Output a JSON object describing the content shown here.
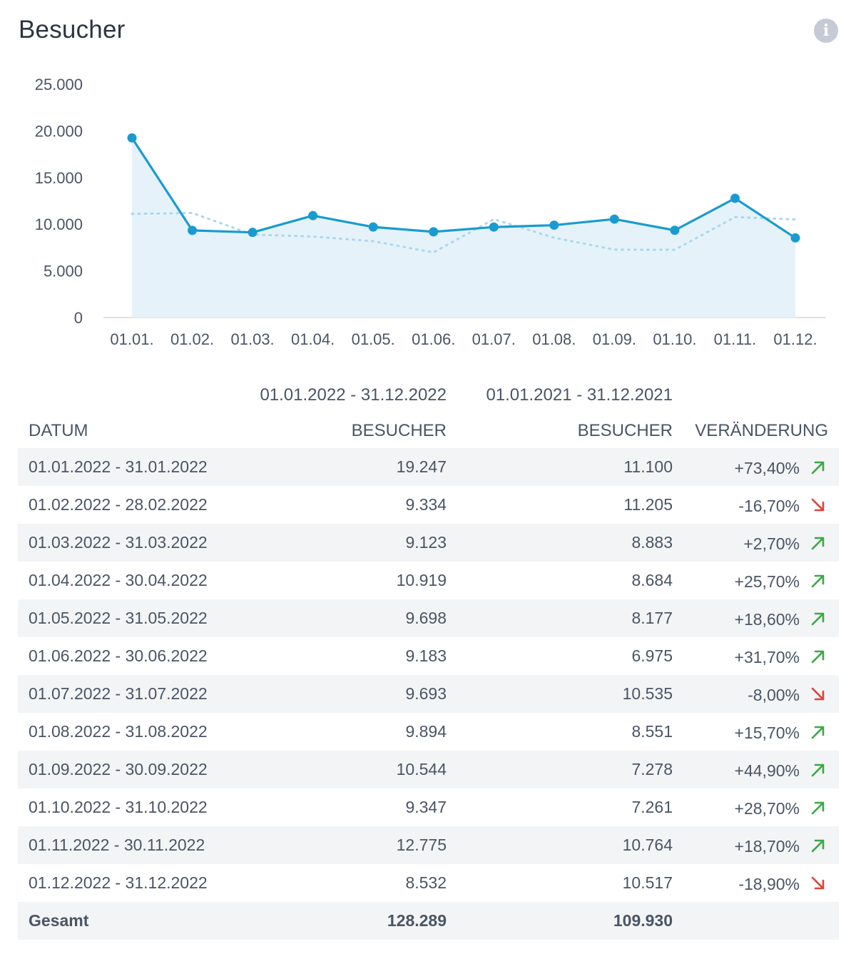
{
  "header": {
    "title": "Besucher",
    "info_icon": "info-icon"
  },
  "chart_data": {
    "type": "line",
    "title": "Besucher",
    "categories": [
      "01.01.",
      "01.02.",
      "01.03.",
      "01.04.",
      "01.05.",
      "01.06.",
      "01.07.",
      "01.08.",
      "01.09.",
      "01.10.",
      "01.11.",
      "01.12."
    ],
    "series": [
      {
        "name": "01.01.2022 - 31.12.2022",
        "style": "solid-with-markers-and-area",
        "color": "#1a9bd0",
        "values": [
          19247,
          9334,
          9123,
          10919,
          9698,
          9183,
          9693,
          9894,
          10544,
          9347,
          12775,
          8532
        ]
      },
      {
        "name": "01.01.2021 - 31.12.2021",
        "style": "dotted",
        "color": "#a9d8ee",
        "values": [
          11100,
          11205,
          8883,
          8684,
          8177,
          6975,
          10535,
          8551,
          7278,
          7261,
          10764,
          10517
        ]
      }
    ],
    "yticks": [
      "0",
      "5.000",
      "10.000",
      "15.000",
      "20.000",
      "25.000"
    ],
    "ylim": [
      0,
      25000
    ],
    "xlabel": "",
    "ylabel": "",
    "area_color": "#e3f1fa"
  },
  "table": {
    "period_current": "01.01.2022 - 31.12.2022",
    "period_previous": "01.01.2021 - 31.12.2021",
    "col_date": "DATUM",
    "col_visitors_current": "BESUCHER",
    "col_visitors_previous": "BESUCHER",
    "col_change": "VERÄNDERUNG",
    "rows": [
      {
        "date": "01.01.2022 - 31.01.2022",
        "current": "19.247",
        "previous": "11.100",
        "change": "+73,40%",
        "trend": "up"
      },
      {
        "date": "01.02.2022 - 28.02.2022",
        "current": "9.334",
        "previous": "11.205",
        "change": "-16,70%",
        "trend": "down"
      },
      {
        "date": "01.03.2022 - 31.03.2022",
        "current": "9.123",
        "previous": "8.883",
        "change": "+2,70%",
        "trend": "up"
      },
      {
        "date": "01.04.2022 - 30.04.2022",
        "current": "10.919",
        "previous": "8.684",
        "change": "+25,70%",
        "trend": "up"
      },
      {
        "date": "01.05.2022 - 31.05.2022",
        "current": "9.698",
        "previous": "8.177",
        "change": "+18,60%",
        "trend": "up"
      },
      {
        "date": "01.06.2022 - 30.06.2022",
        "current": "9.183",
        "previous": "6.975",
        "change": "+31,70%",
        "trend": "up"
      },
      {
        "date": "01.07.2022 - 31.07.2022",
        "current": "9.693",
        "previous": "10.535",
        "change": "-8,00%",
        "trend": "down"
      },
      {
        "date": "01.08.2022 - 31.08.2022",
        "current": "9.894",
        "previous": "8.551",
        "change": "+15,70%",
        "trend": "up"
      },
      {
        "date": "01.09.2022 - 30.09.2022",
        "current": "10.544",
        "previous": "7.278",
        "change": "+44,90%",
        "trend": "up"
      },
      {
        "date": "01.10.2022 - 31.10.2022",
        "current": "9.347",
        "previous": "7.261",
        "change": "+28,70%",
        "trend": "up"
      },
      {
        "date": "01.11.2022 - 30.11.2022",
        "current": "12.775",
        "previous": "10.764",
        "change": "+18,70%",
        "trend": "up"
      },
      {
        "date": "01.12.2022 - 31.12.2022",
        "current": "8.532",
        "previous": "10.517",
        "change": "-18,90%",
        "trend": "down"
      }
    ],
    "total": {
      "label": "Gesamt",
      "current": "128.289",
      "previous": "109.930"
    }
  },
  "colors": {
    "up": "#3aa845",
    "down": "#e0413a",
    "line": "#1a9bd0",
    "dotted": "#a9d8ee",
    "area": "#e3f1fa",
    "row_alt": "#f3f4f6"
  }
}
